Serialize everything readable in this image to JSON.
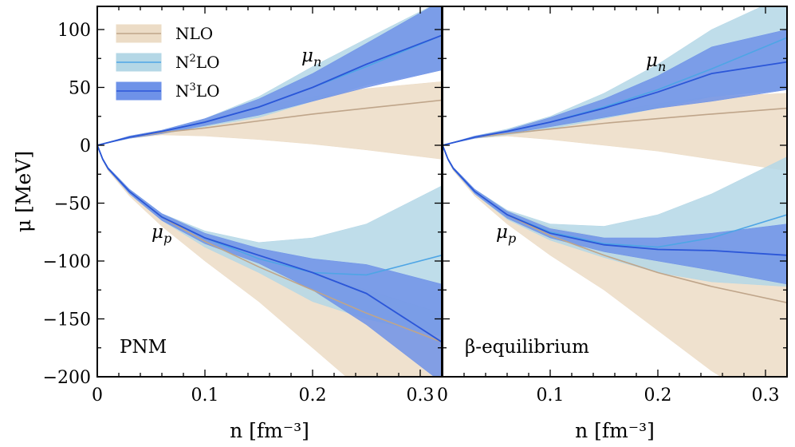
{
  "chart_data": {
    "type": "area",
    "shared": {
      "xlim": [
        0,
        0.32
      ],
      "ylim": [
        -200,
        120
      ],
      "xticks": [
        0,
        0.1,
        0.2,
        0.3
      ],
      "xtick_labels": [
        "0",
        "0.1",
        "0.2",
        "0.3"
      ],
      "yticks": [
        -200,
        -150,
        -100,
        -50,
        0,
        50,
        100
      ],
      "ytick_labels": [
        "−200",
        "−150",
        "−100",
        "−50",
        "0",
        "50",
        "100"
      ],
      "xlabel": "n [fm⁻³]",
      "ylabel": "μ [MeV]",
      "grid": false,
      "legend_position": "top-left of left panel"
    },
    "legend": [
      {
        "key": "NLO",
        "label_base": "NLO",
        "label_sup": "",
        "fill": "#ecdcc6",
        "line": "#bfa58a"
      },
      {
        "key": "N2LO",
        "label_base": "N",
        "label_sup": "2",
        "label_tail": "LO",
        "fill": "#b4d7e6",
        "line": "#4ea5e5"
      },
      {
        "key": "N3LO",
        "label_base": "N",
        "label_sup": "3",
        "label_tail": "LO",
        "fill": "#6e92e8",
        "line": "#2b56d8"
      }
    ],
    "panels": [
      {
        "label": "PNM",
        "annotations": {
          "mu_n": "μ_n",
          "mu_p": "μ_p"
        },
        "series": [
          {
            "name": "NLO μn",
            "order": "NLO",
            "x": [
              0,
              0.03,
              0.06,
              0.1,
              0.15,
              0.2,
              0.25,
              0.32
            ],
            "central": [
              0,
              7,
              11,
              15,
              21,
              27,
              32,
              39
            ],
            "lower": [
              0,
              6,
              9,
              8,
              5,
              1,
              -4,
              -12
            ],
            "upper": [
              0,
              8,
              13,
              22,
              33,
              42,
              49,
              55
            ]
          },
          {
            "name": "N2LO μn",
            "order": "N2LO",
            "x": [
              0,
              0.03,
              0.06,
              0.1,
              0.15,
              0.2,
              0.25,
              0.32
            ],
            "central": [
              0,
              7,
              12,
              20,
              33,
              50,
              68,
              95
            ],
            "lower": [
              0,
              6,
              10,
              16,
              24,
              38,
              52,
              65
            ],
            "upper": [
              0,
              8,
              13,
              23,
              42,
              68,
              92,
              125
            ]
          },
          {
            "name": "N3LO μn",
            "order": "N3LO",
            "x": [
              0,
              0.03,
              0.06,
              0.1,
              0.15,
              0.2,
              0.25,
              0.32
            ],
            "central": [
              0,
              7,
              12,
              20,
              33,
              50,
              70,
              95
            ],
            "lower": [
              0,
              6,
              10,
              17,
              26,
              38,
              50,
              65
            ],
            "upper": [
              0,
              8,
              13,
              23,
              40,
              62,
              88,
              125
            ]
          },
          {
            "name": "NLO μp",
            "order": "NLO",
            "x": [
              0,
              0.005,
              0.01,
              0.03,
              0.06,
              0.1,
              0.15,
              0.2,
              0.25,
              0.32
            ],
            "central": [
              0,
              -12,
              -20,
              -40,
              -62,
              -83,
              -105,
              -125,
              -145,
              -170
            ],
            "lower": [
              0,
              -13,
              -22,
              -44,
              -70,
              -100,
              -135,
              -175,
              -215,
              -265
            ],
            "upper": [
              0,
              -11,
              -19,
              -38,
              -60,
              -78,
              -95,
              -110,
              -125,
              -145
            ]
          },
          {
            "name": "N2LO μp",
            "order": "N2LO",
            "x": [
              0,
              0.005,
              0.01,
              0.03,
              0.06,
              0.1,
              0.15,
              0.2,
              0.25,
              0.32
            ],
            "central": [
              0,
              -12,
              -20,
              -40,
              -62,
              -80,
              -98,
              -110,
              -112,
              -95
            ],
            "lower": [
              0,
              -13,
              -21,
              -42,
              -65,
              -88,
              -110,
              -135,
              -150,
              -165
            ],
            "upper": [
              0,
              -11,
              -19,
              -38,
              -59,
              -74,
              -84,
              -80,
              -68,
              -35
            ]
          },
          {
            "name": "N3LO μp",
            "order": "N3LO",
            "x": [
              0,
              0.005,
              0.01,
              0.03,
              0.06,
              0.1,
              0.15,
              0.2,
              0.25,
              0.32
            ],
            "central": [
              0,
              -12,
              -20,
              -40,
              -62,
              -80,
              -95,
              -110,
              -128,
              -170
            ],
            "lower": [
              0,
              -13,
              -21,
              -42,
              -65,
              -85,
              -102,
              -125,
              -155,
              -205
            ],
            "upper": [
              0,
              -11,
              -19,
              -38,
              -59,
              -76,
              -89,
              -98,
              -103,
              -120
            ]
          }
        ]
      },
      {
        "label": "β-equilibrium",
        "annotations": {
          "mu_n": "μ_n",
          "mu_p": "μ_p"
        },
        "series": [
          {
            "name": "NLO μn",
            "order": "NLO",
            "x": [
              0,
              0.03,
              0.06,
              0.1,
              0.15,
              0.2,
              0.25,
              0.32
            ],
            "central": [
              0,
              7,
              10,
              14,
              19,
              23,
              27,
              32
            ],
            "lower": [
              0,
              6,
              8,
              5,
              0,
              -5,
              -12,
              -22
            ],
            "upper": [
              0,
              8,
              13,
              20,
              28,
              36,
              42,
              45
            ]
          },
          {
            "name": "N2LO μn",
            "order": "N2LO",
            "x": [
              0,
              0.03,
              0.06,
              0.1,
              0.15,
              0.2,
              0.25,
              0.32
            ],
            "central": [
              0,
              7,
              12,
              20,
              33,
              48,
              66,
              93
            ],
            "lower": [
              0,
              6,
              9,
              14,
              23,
              32,
              42,
              48
            ],
            "upper": [
              0,
              8,
              14,
              25,
              45,
              70,
              100,
              130
            ]
          },
          {
            "name": "N3LO μn",
            "order": "N3LO",
            "x": [
              0,
              0.03,
              0.06,
              0.1,
              0.15,
              0.2,
              0.25,
              0.32
            ],
            "central": [
              0,
              7,
              12,
              20,
              32,
              46,
              62,
              72
            ],
            "lower": [
              0,
              6,
              10,
              16,
              24,
              32,
              38,
              48
            ],
            "upper": [
              0,
              8,
              13,
              24,
              40,
              60,
              85,
              100
            ]
          },
          {
            "name": "NLO μp",
            "order": "NLO",
            "x": [
              0,
              0.005,
              0.01,
              0.03,
              0.06,
              0.1,
              0.15,
              0.2,
              0.25,
              0.32
            ],
            "central": [
              0,
              -12,
              -20,
              -40,
              -60,
              -78,
              -95,
              -110,
              -122,
              -136
            ],
            "lower": [
              0,
              -13,
              -22,
              -44,
              -68,
              -95,
              -125,
              -160,
              -195,
              -235
            ],
            "upper": [
              0,
              -11,
              -19,
              -38,
              -57,
              -70,
              -80,
              -85,
              -88,
              -95
            ]
          },
          {
            "name": "N2LO μp",
            "order": "N2LO",
            "x": [
              0,
              0.005,
              0.01,
              0.03,
              0.06,
              0.1,
              0.15,
              0.2,
              0.25,
              0.32
            ],
            "central": [
              0,
              -12,
              -20,
              -40,
              -60,
              -75,
              -85,
              -88,
              -80,
              -60
            ],
            "lower": [
              0,
              -13,
              -21,
              -42,
              -64,
              -82,
              -97,
              -110,
              -118,
              -122
            ],
            "upper": [
              0,
              -11,
              -19,
              -38,
              -56,
              -68,
              -70,
              -60,
              -42,
              -10
            ]
          },
          {
            "name": "N3LO μp",
            "order": "N3LO",
            "x": [
              0,
              0.005,
              0.01,
              0.03,
              0.06,
              0.1,
              0.15,
              0.2,
              0.25,
              0.32
            ],
            "central": [
              0,
              -12,
              -20,
              -40,
              -60,
              -76,
              -86,
              -90,
              -91,
              -95
            ],
            "lower": [
              0,
              -13,
              -21,
              -42,
              -63,
              -80,
              -92,
              -100,
              -108,
              -120
            ],
            "upper": [
              0,
              -11,
              -19,
              -38,
              -57,
              -72,
              -80,
              -80,
              -76,
              -68
            ]
          }
        ]
      }
    ]
  }
}
